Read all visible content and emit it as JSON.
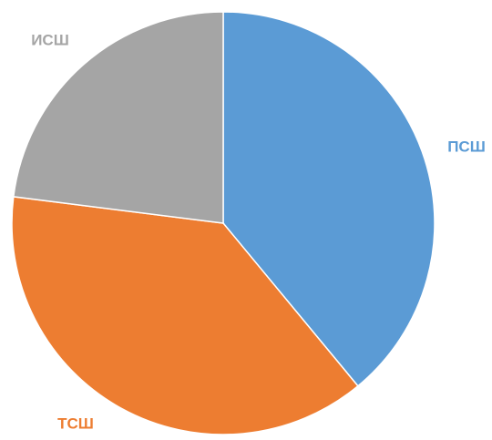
{
  "chart_data": {
    "type": "pie",
    "categories": [
      "ПСШ",
      "ТСШ",
      "ИСШ"
    ],
    "values": [
      39,
      38,
      23
    ],
    "colors": [
      "#5b9bd5",
      "#ed7d31",
      "#a5a5a5"
    ],
    "start_angle": 0,
    "direction": "clockwise"
  }
}
